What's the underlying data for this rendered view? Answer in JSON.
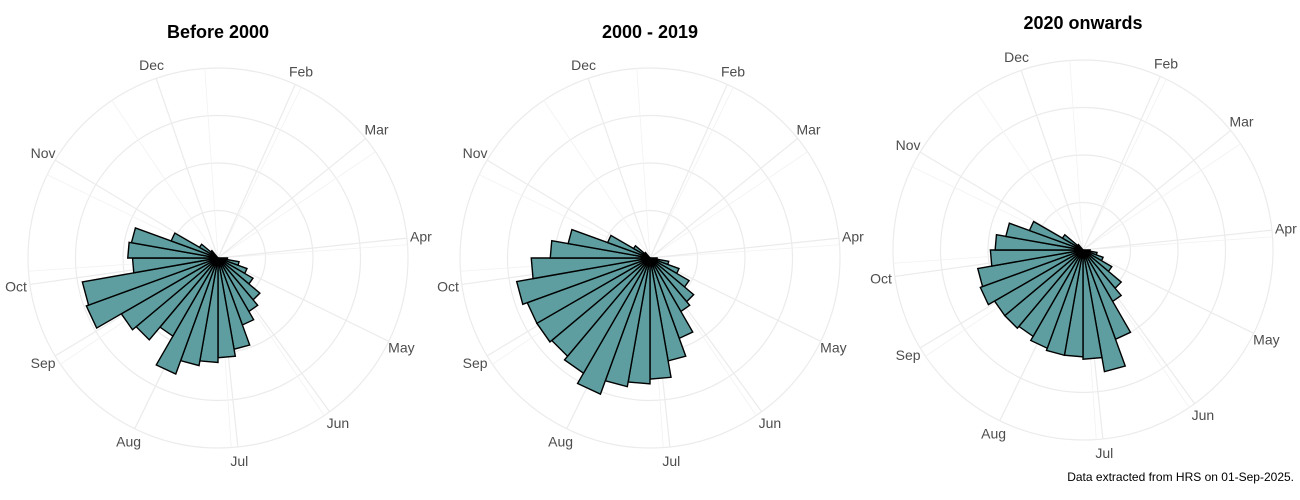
{
  "caption": "Data extracted from HRS on 01-Sep-2025.",
  "colors": {
    "bar_fill": "#5f9ea0",
    "bar_stroke": "#000000",
    "grid": "#ebebeb",
    "label": "#4d4d4d"
  },
  "chart_data": [
    {
      "type": "bar",
      "polar": true,
      "title": "Before 2000",
      "month_labels": [
        "Dec",
        "Feb",
        "Mar",
        "Apr",
        "May",
        "Jun",
        "Jul",
        "Aug",
        "Sep",
        "Oct",
        "Nov"
      ],
      "categories": [
        "Apr",
        "Apr",
        "May",
        "May",
        "May",
        "May",
        "Jun",
        "Jun",
        "Jun",
        "Jun",
        "Jul",
        "Jul",
        "Jul",
        "Jul",
        "Aug",
        "Aug",
        "Aug",
        "Aug",
        "Sep",
        "Sep",
        "Sep",
        "Sep",
        "Oct"
      ],
      "values": [
        0.4,
        0.9,
        1.3,
        1.7,
        2.3,
        2.6,
        3.0,
        3.9,
        4.2,
        4.4,
        4.6,
        5.2,
        3.8,
        4.5,
        4.7,
        5.9,
        5.8,
        3.6,
        3.8,
        3.7,
        2.1,
        0.9,
        0.4
      ],
      "grid_max": 8,
      "ylim": [
        0,
        8
      ]
    },
    {
      "type": "bar",
      "polar": true,
      "title": "2000 - 2019",
      "month_labels": [
        "Dec",
        "Feb",
        "Mar",
        "Apr",
        "May",
        "Jun",
        "Jul",
        "Aug",
        "Sep",
        "Oct",
        "Nov"
      ],
      "categories": [
        "Apr",
        "Apr",
        "May",
        "May",
        "May",
        "May",
        "Jun",
        "Jun",
        "Jun",
        "Jun",
        "Jul",
        "Jul",
        "Jul",
        "Jul",
        "Aug",
        "Aug",
        "Aug",
        "Aug",
        "Sep",
        "Sep",
        "Sep",
        "Sep",
        "Oct"
      ],
      "values": [
        0.3,
        0.8,
        1.3,
        1.9,
        2.4,
        2.6,
        3.6,
        4.4,
        5.1,
        5.3,
        5.5,
        6.1,
        5.6,
        5.4,
        5.5,
        5.5,
        5.7,
        5.0,
        4.2,
        3.5,
        1.9,
        0.8,
        0.3
      ],
      "grid_max": 8,
      "ylim": [
        0,
        8
      ]
    },
    {
      "type": "bar",
      "polar": true,
      "title": "2020 onwards",
      "month_labels": [
        "Dec",
        "Feb",
        "Mar",
        "Apr",
        "May",
        "Jun",
        "Jul",
        "Aug",
        "Sep",
        "Oct",
        "Nov"
      ],
      "categories": [
        "Apr",
        "Apr",
        "May",
        "May",
        "May",
        "May",
        "Jun",
        "Jun",
        "Jun",
        "Jun",
        "Jul",
        "Jul",
        "Jul",
        "Jul",
        "Aug",
        "Aug",
        "Aug",
        "Aug",
        "Sep",
        "Sep",
        "Sep",
        "Sep",
        "Oct"
      ],
      "values": [
        0.3,
        0.6,
        0.9,
        1.4,
        2.1,
        2.5,
        4.0,
        5.2,
        4.6,
        4.5,
        4.5,
        4.4,
        4.2,
        4.3,
        4.3,
        4.6,
        4.5,
        3.9,
        3.7,
        3.3,
        2.4,
        1.0,
        0.3
      ],
      "grid_max": 8,
      "ylim": [
        0,
        8
      ]
    }
  ]
}
